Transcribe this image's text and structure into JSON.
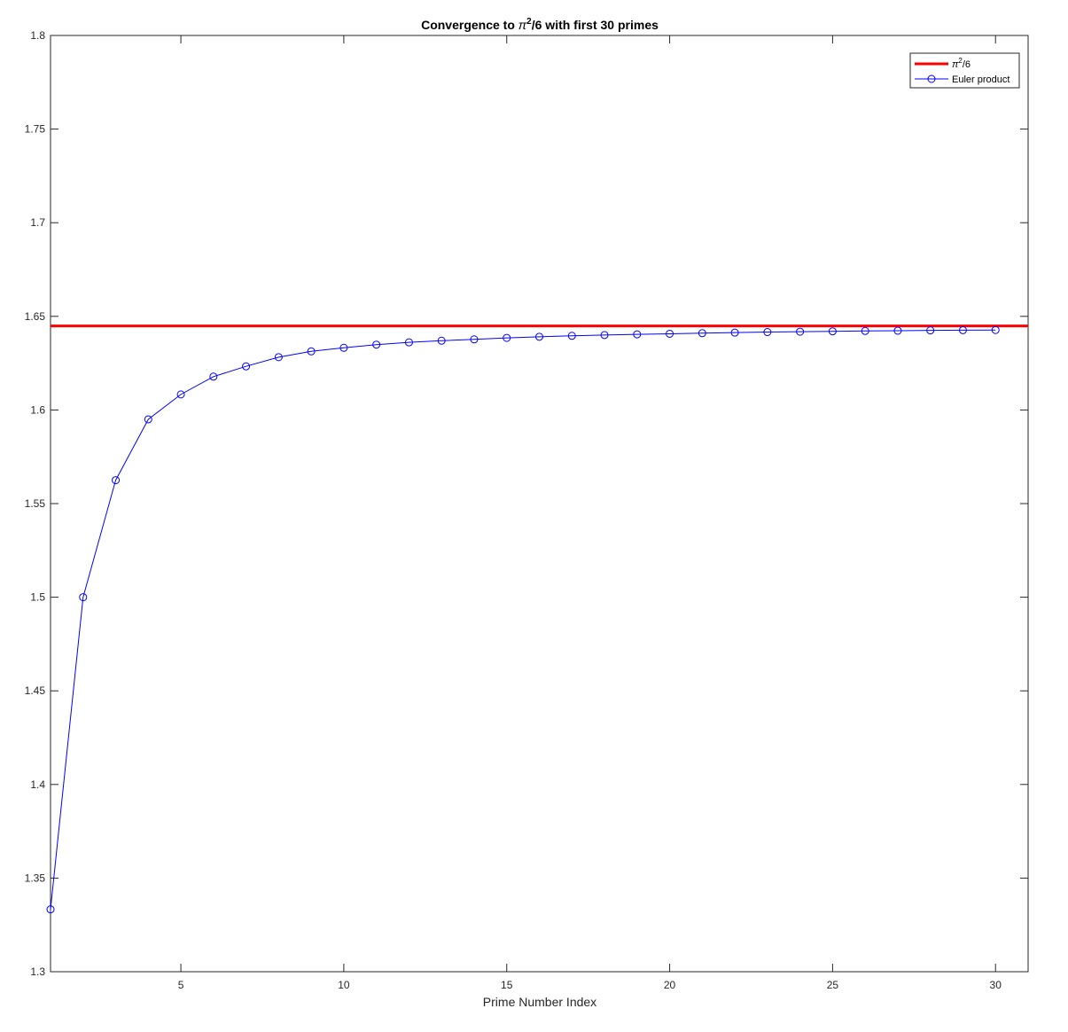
{
  "chart_data": {
    "type": "line",
    "title": {
      "prefix": "Convergence to ",
      "symbol": "π",
      "superscript": "2",
      "suffix": "/6 with first 30 primes"
    },
    "xlabel": "Prime Number Index",
    "ylabel": "",
    "xlim": [
      1,
      31
    ],
    "ylim": [
      1.3,
      1.8
    ],
    "xticks": [
      5,
      10,
      15,
      20,
      25,
      30
    ],
    "yticks": [
      1.3,
      1.35,
      1.4,
      1.45,
      1.5,
      1.55,
      1.6,
      1.65,
      1.7,
      1.75,
      1.8
    ],
    "grid": false,
    "legend_position": "top-right",
    "reference_line": {
      "name": {
        "symbol": "π",
        "superscript": "2",
        "suffix": "/6"
      },
      "value": 1.6449,
      "color": "#ff0000"
    },
    "series": [
      {
        "name": "Euler product",
        "color": "#0000ff",
        "marker": "circle",
        "x": [
          1,
          2,
          3,
          4,
          5,
          6,
          7,
          8,
          9,
          10,
          11,
          12,
          13,
          14,
          15,
          16,
          17,
          18,
          19,
          20,
          21,
          22,
          23,
          24,
          25,
          26,
          27,
          28,
          29,
          30
        ],
        "values": [
          1.3333,
          1.5,
          1.5625,
          1.595,
          1.6083,
          1.6178,
          1.6233,
          1.6282,
          1.6313,
          1.6332,
          1.6349,
          1.6361,
          1.637,
          1.6377,
          1.6385,
          1.6391,
          1.6396,
          1.64,
          1.6404,
          1.6407,
          1.641,
          1.6413,
          1.6416,
          1.6418,
          1.642,
          1.6422,
          1.6423,
          1.6425,
          1.6426,
          1.6427
        ]
      }
    ]
  }
}
